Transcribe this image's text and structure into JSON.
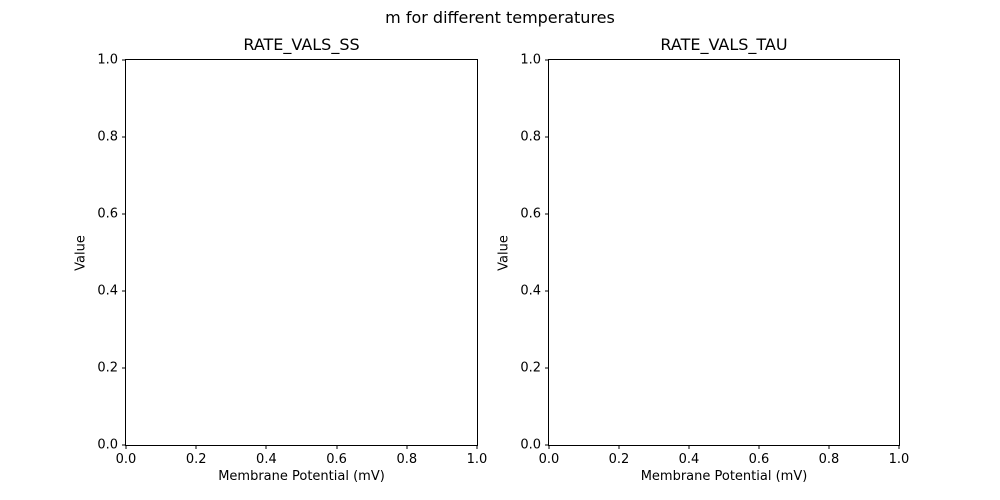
{
  "figure": {
    "suptitle": "m for different temperatures",
    "background_color": "#ffffff",
    "axes_color": "#000000",
    "text_color": "#000000"
  },
  "subplots": [
    {
      "title": "RATE_VALS_SS",
      "xlabel": "Membrane Potential (mV)",
      "ylabel": "Value",
      "xticklabels": [
        "0.0",
        "0.2",
        "0.4",
        "0.6",
        "0.8",
        "1.0"
      ],
      "yticklabels": [
        "0.0",
        "0.2",
        "0.4",
        "0.6",
        "0.8",
        "1.0"
      ]
    },
    {
      "title": "RATE_VALS_TAU",
      "xlabel": "Membrane Potential (mV)",
      "ylabel": "Value",
      "xticklabels": [
        "0.0",
        "0.2",
        "0.4",
        "0.6",
        "0.8",
        "1.0"
      ],
      "yticklabels": [
        "0.0",
        "0.2",
        "0.4",
        "0.6",
        "0.8",
        "1.0"
      ]
    }
  ],
  "chart_data": [
    {
      "type": "line",
      "title": "RATE_VALS_SS",
      "xlabel": "Membrane Potential (mV)",
      "ylabel": "Value",
      "xlim": [
        0.0,
        1.0
      ],
      "ylim": [
        0.0,
        1.0
      ],
      "xticks": [
        0.0,
        0.2,
        0.4,
        0.6,
        0.8,
        1.0
      ],
      "yticks": [
        0.0,
        0.2,
        0.4,
        0.6,
        0.8,
        1.0
      ],
      "series": [],
      "grid": false,
      "legend": false
    },
    {
      "type": "line",
      "title": "RATE_VALS_TAU",
      "xlabel": "Membrane Potential (mV)",
      "ylabel": "Value",
      "xlim": [
        0.0,
        1.0
      ],
      "ylim": [
        0.0,
        1.0
      ],
      "xticks": [
        0.0,
        0.2,
        0.4,
        0.6,
        0.8,
        1.0
      ],
      "yticks": [
        0.0,
        0.2,
        0.4,
        0.6,
        0.8,
        1.0
      ],
      "series": [],
      "grid": false,
      "legend": false
    }
  ]
}
